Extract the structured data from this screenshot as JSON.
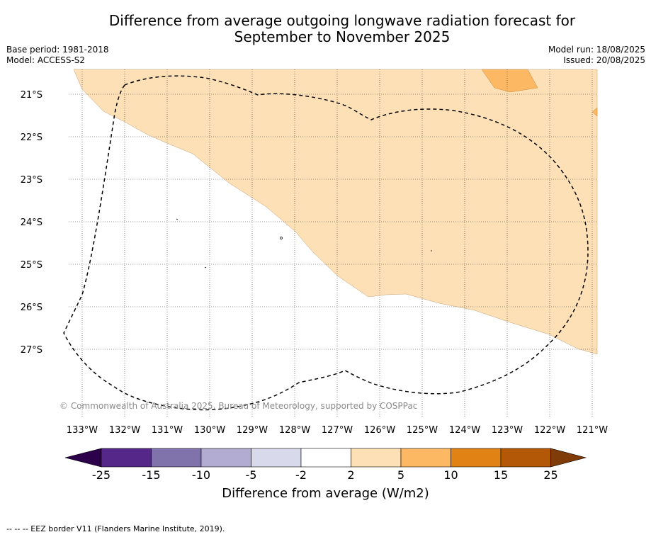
{
  "title_line1": "Difference from average outgoing longwave radiation forecast for",
  "title_line2": "September to November 2025",
  "meta_left": {
    "base_period": "Base period: 1981-2018",
    "model": "Model: ACCESS-S2"
  },
  "meta_right": {
    "model_run": "Model run: 18/08/2025",
    "issued": "Issued: 20/08/2025"
  },
  "lon_labels": [
    "133°W",
    "132°W",
    "131°W",
    "130°W",
    "129°W",
    "128°W",
    "127°W",
    "126°W",
    "125°W",
    "124°W",
    "123°W",
    "122°W",
    "121°W"
  ],
  "lat_labels": [
    "21°S",
    "22°S",
    "23°S",
    "24°S",
    "25°S",
    "26°S",
    "27°S"
  ],
  "copyright": "© Commonwealth of Australia 2025, Bureau of Meteorology, supported by COSPPac",
  "colorbar": {
    "label": "Difference from average (W/m2)",
    "ticks": [
      "-25",
      "-15",
      "-10",
      "-5",
      "-2",
      "2",
      "5",
      "10",
      "15",
      "25"
    ],
    "colors": [
      "#2d004b",
      "#542788",
      "#8073ac",
      "#b2abd2",
      "#d8daeb",
      "#ffffff",
      "#fee0b6",
      "#fdb863",
      "#e08214",
      "#b35806",
      "#7f3b08"
    ]
  },
  "footer": "--  --  -- EEZ border V11 (Flanders Marine Institute, 2019)."
}
